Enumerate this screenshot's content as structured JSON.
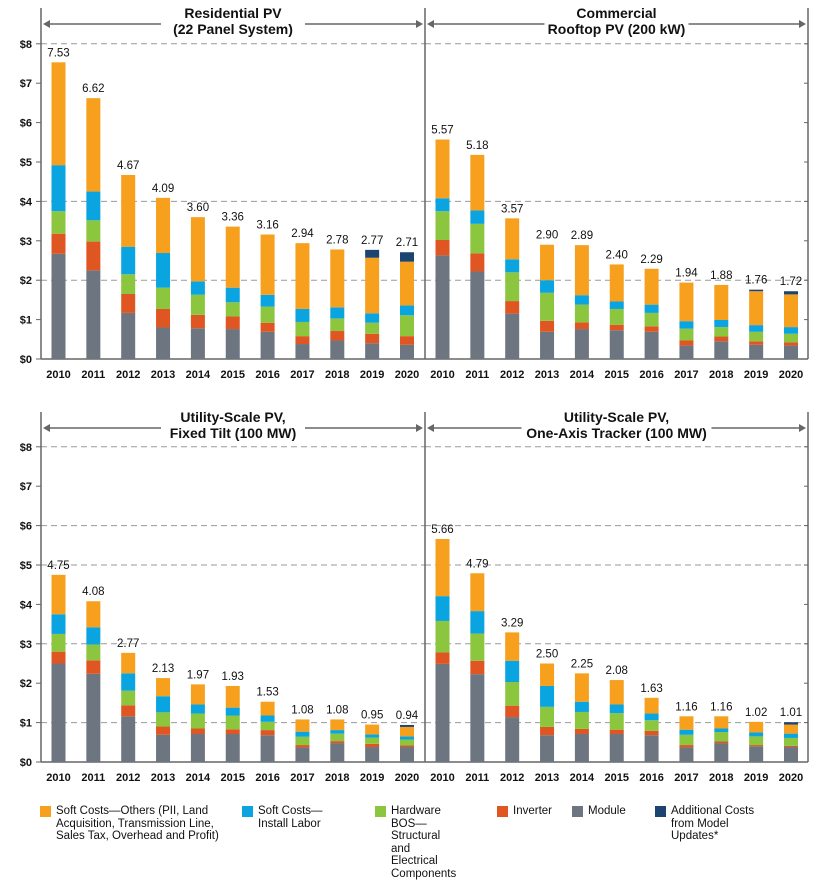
{
  "legend": [
    {
      "key": "soft_others",
      "label": "Soft Costs—Others (PII, Land Acquisition, Transmission Line, Sales Tax, Overhead and Profit)",
      "color": "#F7A01E"
    },
    {
      "key": "install",
      "label": "Soft Costs—Install Labor",
      "color": "#0AA5E1"
    },
    {
      "key": "hardware",
      "label": "Hardware BOS—Structural and Electrical Components",
      "color": "#8CC63F"
    },
    {
      "key": "inverter",
      "label": "Inverter",
      "color": "#E05622"
    },
    {
      "key": "module",
      "label": "Module",
      "color": "#6D7580"
    },
    {
      "key": "additional",
      "label": "Additional Costs from Model Updates*",
      "color": "#1C4470"
    }
  ],
  "chart_data": [
    {
      "type": "bar",
      "stacked": true,
      "title": [
        "Residential PV",
        "(22 Panel System)"
      ],
      "categories": [
        "2010",
        "2011",
        "2012",
        "2013",
        "2014",
        "2015",
        "2016",
        "2017",
        "2018",
        "2019",
        "2020"
      ],
      "ylim": [
        0,
        8
      ],
      "ytick_labels": [
        "$0",
        "$1",
        "$2",
        "$3",
        "$4",
        "$5",
        "$6",
        "$7",
        "$8"
      ],
      "totals": [
        "7.53",
        "6.62",
        "4.67",
        "4.09",
        "3.60",
        "3.36",
        "3.16",
        "2.94",
        "2.78",
        "2.77",
        "2.71"
      ],
      "series": [
        {
          "name": "Module",
          "values": [
            2.67,
            2.25,
            1.17,
            0.8,
            0.78,
            0.76,
            0.69,
            0.38,
            0.47,
            0.4,
            0.36
          ]
        },
        {
          "name": "Inverter",
          "values": [
            0.51,
            0.73,
            0.48,
            0.47,
            0.34,
            0.32,
            0.23,
            0.2,
            0.24,
            0.24,
            0.22
          ]
        },
        {
          "name": "Hardware BOS—Structural and Electrical Components",
          "values": [
            0.57,
            0.54,
            0.5,
            0.54,
            0.51,
            0.36,
            0.41,
            0.36,
            0.32,
            0.28,
            0.53
          ]
        },
        {
          "name": "Soft Costs—Install Labor",
          "values": [
            1.17,
            0.73,
            0.7,
            0.88,
            0.34,
            0.37,
            0.3,
            0.33,
            0.28,
            0.24,
            0.25
          ]
        },
        {
          "name": "Soft Costs—Others (PII, Land Acquisition, Transmission Line, Sales Tax, Overhead and Profit)",
          "values": [
            2.61,
            2.37,
            1.82,
            1.4,
            1.63,
            1.55,
            1.53,
            1.67,
            1.47,
            1.41,
            1.11
          ]
        },
        {
          "name": "Additional Costs from Model Updates*",
          "values": [
            0,
            0,
            0,
            0,
            0,
            0,
            0,
            0,
            0,
            0.2,
            0.24
          ]
        }
      ]
    },
    {
      "type": "bar",
      "stacked": true,
      "title": [
        "Commercial",
        "Rooftop PV (200 kW)"
      ],
      "categories": [
        "2010",
        "2011",
        "2012",
        "2013",
        "2014",
        "2015",
        "2016",
        "2017",
        "2018",
        "2019",
        "2020"
      ],
      "ylim": [
        0,
        8
      ],
      "totals": [
        "5.57",
        "5.18",
        "3.57",
        "2.90",
        "2.89",
        "2.40",
        "2.29",
        "1.94",
        "1.88",
        "1.76",
        "1.72"
      ],
      "series": [
        {
          "name": "Module",
          "values": [
            2.63,
            2.22,
            1.15,
            0.69,
            0.76,
            0.73,
            0.69,
            0.34,
            0.45,
            0.36,
            0.34
          ]
        },
        {
          "name": "Inverter",
          "values": [
            0.39,
            0.46,
            0.32,
            0.28,
            0.17,
            0.14,
            0.14,
            0.13,
            0.12,
            0.09,
            0.08
          ]
        },
        {
          "name": "Hardware BOS—Structural and Electrical Components",
          "values": [
            0.73,
            0.75,
            0.73,
            0.71,
            0.45,
            0.4,
            0.34,
            0.3,
            0.24,
            0.24,
            0.22
          ]
        },
        {
          "name": "Soft Costs—Install Labor",
          "values": [
            0.33,
            0.34,
            0.33,
            0.32,
            0.24,
            0.19,
            0.21,
            0.19,
            0.18,
            0.17,
            0.17
          ]
        },
        {
          "name": "Soft Costs—Others (PII, Land Acquisition, Transmission Line, Sales Tax, Overhead and Profit)",
          "values": [
            1.49,
            1.41,
            1.04,
            0.9,
            1.27,
            0.94,
            0.91,
            0.98,
            0.89,
            0.86,
            0.83
          ]
        },
        {
          "name": "Additional Costs from Model Updates*",
          "values": [
            0,
            0,
            0,
            0,
            0,
            0,
            0,
            0,
            0,
            0.04,
            0.08
          ]
        }
      ]
    },
    {
      "type": "bar",
      "stacked": true,
      "title": [
        "Utility-Scale PV,",
        "Fixed Tilt (100 MW)"
      ],
      "categories": [
        "2010",
        "2011",
        "2012",
        "2013",
        "2014",
        "2015",
        "2016",
        "2017",
        "2018",
        "2019",
        "2020"
      ],
      "ylim": [
        0,
        8
      ],
      "ytick_labels": [
        "$0",
        "$1",
        "$2",
        "$3",
        "$4",
        "$5",
        "$6",
        "$7",
        "$8"
      ],
      "totals": [
        "4.75",
        "4.08",
        "2.77",
        "2.13",
        "1.97",
        "1.93",
        "1.53",
        "1.08",
        "1.08",
        "0.95",
        "0.94"
      ],
      "series": [
        {
          "name": "Module",
          "values": [
            2.5,
            2.24,
            1.16,
            0.69,
            0.71,
            0.71,
            0.68,
            0.37,
            0.48,
            0.38,
            0.38
          ]
        },
        {
          "name": "Inverter",
          "values": [
            0.3,
            0.34,
            0.28,
            0.21,
            0.14,
            0.12,
            0.13,
            0.06,
            0.05,
            0.08,
            0.04
          ]
        },
        {
          "name": "Hardware BOS—Structural and Electrical Components",
          "values": [
            0.45,
            0.4,
            0.37,
            0.36,
            0.38,
            0.35,
            0.21,
            0.21,
            0.19,
            0.16,
            0.15
          ]
        },
        {
          "name": "Soft Costs—Install Labor",
          "values": [
            0.5,
            0.44,
            0.44,
            0.41,
            0.23,
            0.2,
            0.16,
            0.13,
            0.09,
            0.08,
            0.08
          ]
        },
        {
          "name": "Soft Costs—Others (PII, Land Acquisition, Transmission Line, Sales Tax, Overhead and Profit)",
          "values": [
            1.0,
            0.66,
            0.52,
            0.46,
            0.51,
            0.55,
            0.35,
            0.31,
            0.27,
            0.25,
            0.24
          ]
        },
        {
          "name": "Additional Costs from Model Updates*",
          "values": [
            0,
            0,
            0,
            0,
            0,
            0,
            0,
            0,
            0,
            0,
            0.05
          ]
        }
      ]
    },
    {
      "type": "bar",
      "stacked": true,
      "title": [
        "Utility-Scale PV,",
        "One-Axis Tracker (100 MW)"
      ],
      "categories": [
        "2010",
        "2011",
        "2012",
        "2013",
        "2014",
        "2015",
        "2016",
        "2017",
        "2018",
        "2019",
        "2020"
      ],
      "ylim": [
        0,
        8
      ],
      "totals": [
        "5.66",
        "4.79",
        "3.29",
        "2.50",
        "2.25",
        "2.08",
        "1.63",
        "1.16",
        "1.16",
        "1.02",
        "1.01"
      ],
      "series": [
        {
          "name": "Module",
          "values": [
            2.49,
            2.23,
            1.14,
            0.68,
            0.71,
            0.71,
            0.68,
            0.37,
            0.48,
            0.4,
            0.38
          ]
        },
        {
          "name": "Inverter",
          "values": [
            0.29,
            0.34,
            0.29,
            0.21,
            0.13,
            0.11,
            0.11,
            0.06,
            0.04,
            0.03,
            0.03
          ]
        },
        {
          "name": "Hardware BOS—Structural and Electrical Components",
          "values": [
            0.8,
            0.69,
            0.6,
            0.51,
            0.43,
            0.42,
            0.27,
            0.26,
            0.24,
            0.22,
            0.2
          ]
        },
        {
          "name": "Soft Costs—Install Labor",
          "values": [
            0.63,
            0.57,
            0.54,
            0.53,
            0.26,
            0.22,
            0.17,
            0.13,
            0.09,
            0.1,
            0.11
          ]
        },
        {
          "name": "Soft Costs—Others (PII, Land Acquisition, Transmission Line, Sales Tax, Overhead and Profit)",
          "values": [
            1.45,
            0.96,
            0.72,
            0.57,
            0.72,
            0.62,
            0.4,
            0.34,
            0.31,
            0.27,
            0.23
          ]
        },
        {
          "name": "Additional Costs from Model Updates*",
          "values": [
            0,
            0,
            0,
            0,
            0,
            0,
            0,
            0,
            0,
            0,
            0.06
          ]
        }
      ]
    }
  ]
}
